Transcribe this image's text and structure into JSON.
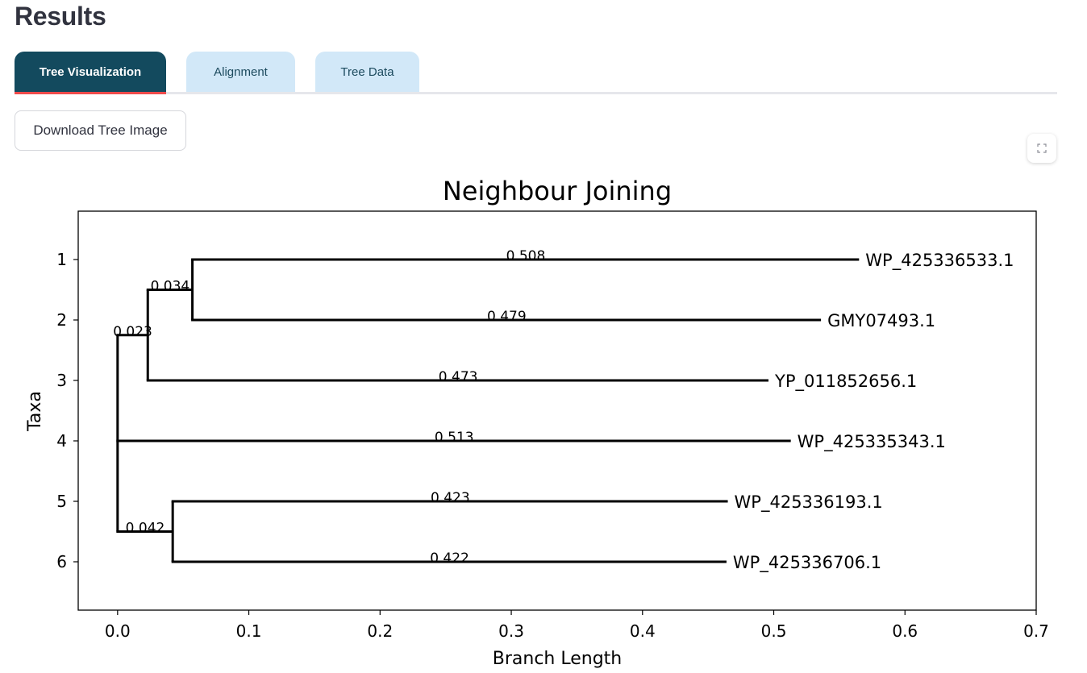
{
  "page": {
    "heading": "Results"
  },
  "tabs": [
    {
      "label": "Tree Visualization",
      "active": true
    },
    {
      "label": "Alignment",
      "active": false
    },
    {
      "label": "Tree Data",
      "active": false
    }
  ],
  "actions": {
    "download_label": "Download Tree Image",
    "fullscreen_icon": "expand-icon"
  },
  "colors": {
    "tab_active_bg": "#134a5e",
    "tab_active_underline": "#ef4b4b",
    "tab_inactive_bg": "#d2e8f8"
  },
  "chart_data": {
    "type": "tree",
    "title": "Neighbour Joining",
    "xlabel": "Branch Length",
    "ylabel": "Taxa",
    "xlim": [
      -0.03,
      0.7
    ],
    "ylim": [
      6.8,
      0.2
    ],
    "xticks": [
      "0.0",
      "0.1",
      "0.2",
      "0.3",
      "0.4",
      "0.5",
      "0.6",
      "0.7"
    ],
    "yticks": [
      "1",
      "2",
      "3",
      "4",
      "5",
      "6"
    ],
    "grid": false,
    "leaves": [
      {
        "name": "WP_425336533.1",
        "y": 1
      },
      {
        "name": "GMY07493.1",
        "y": 2
      },
      {
        "name": "YP_011852656.1",
        "y": 3
      },
      {
        "name": "WP_425335343.1",
        "y": 4
      },
      {
        "name": "WP_425336193.1",
        "y": 5
      },
      {
        "name": "WP_425336706.1",
        "y": 6
      }
    ],
    "branches": [
      {
        "label": "0.023",
        "x0": 0.0,
        "x1": 0.023,
        "y": 2.25
      },
      {
        "label": "0.034",
        "x0": 0.023,
        "x1": 0.057,
        "y": 1.5
      },
      {
        "label": "0.508",
        "x0": 0.057,
        "x1": 0.565,
        "y": 1
      },
      {
        "label": "0.479",
        "x0": 0.057,
        "x1": 0.536,
        "y": 2
      },
      {
        "label": "0.473",
        "x0": 0.023,
        "x1": 0.496,
        "y": 3
      },
      {
        "label": "0.513",
        "x0": 0.0,
        "x1": 0.513,
        "y": 4
      },
      {
        "label": "0.042",
        "x0": 0.0,
        "x1": 0.042,
        "y": 5.5
      },
      {
        "label": "0.423",
        "x0": 0.042,
        "x1": 0.465,
        "y": 5
      },
      {
        "label": "0.422",
        "x0": 0.042,
        "x1": 0.464,
        "y": 6
      }
    ],
    "clades": [
      {
        "x": 0.0,
        "y0": 2.25,
        "y1": 5.5
      },
      {
        "x": 0.023,
        "y0": 1.5,
        "y1": 3
      },
      {
        "x": 0.057,
        "y0": 1,
        "y1": 2
      },
      {
        "x": 0.042,
        "y0": 5,
        "y1": 6
      }
    ]
  }
}
